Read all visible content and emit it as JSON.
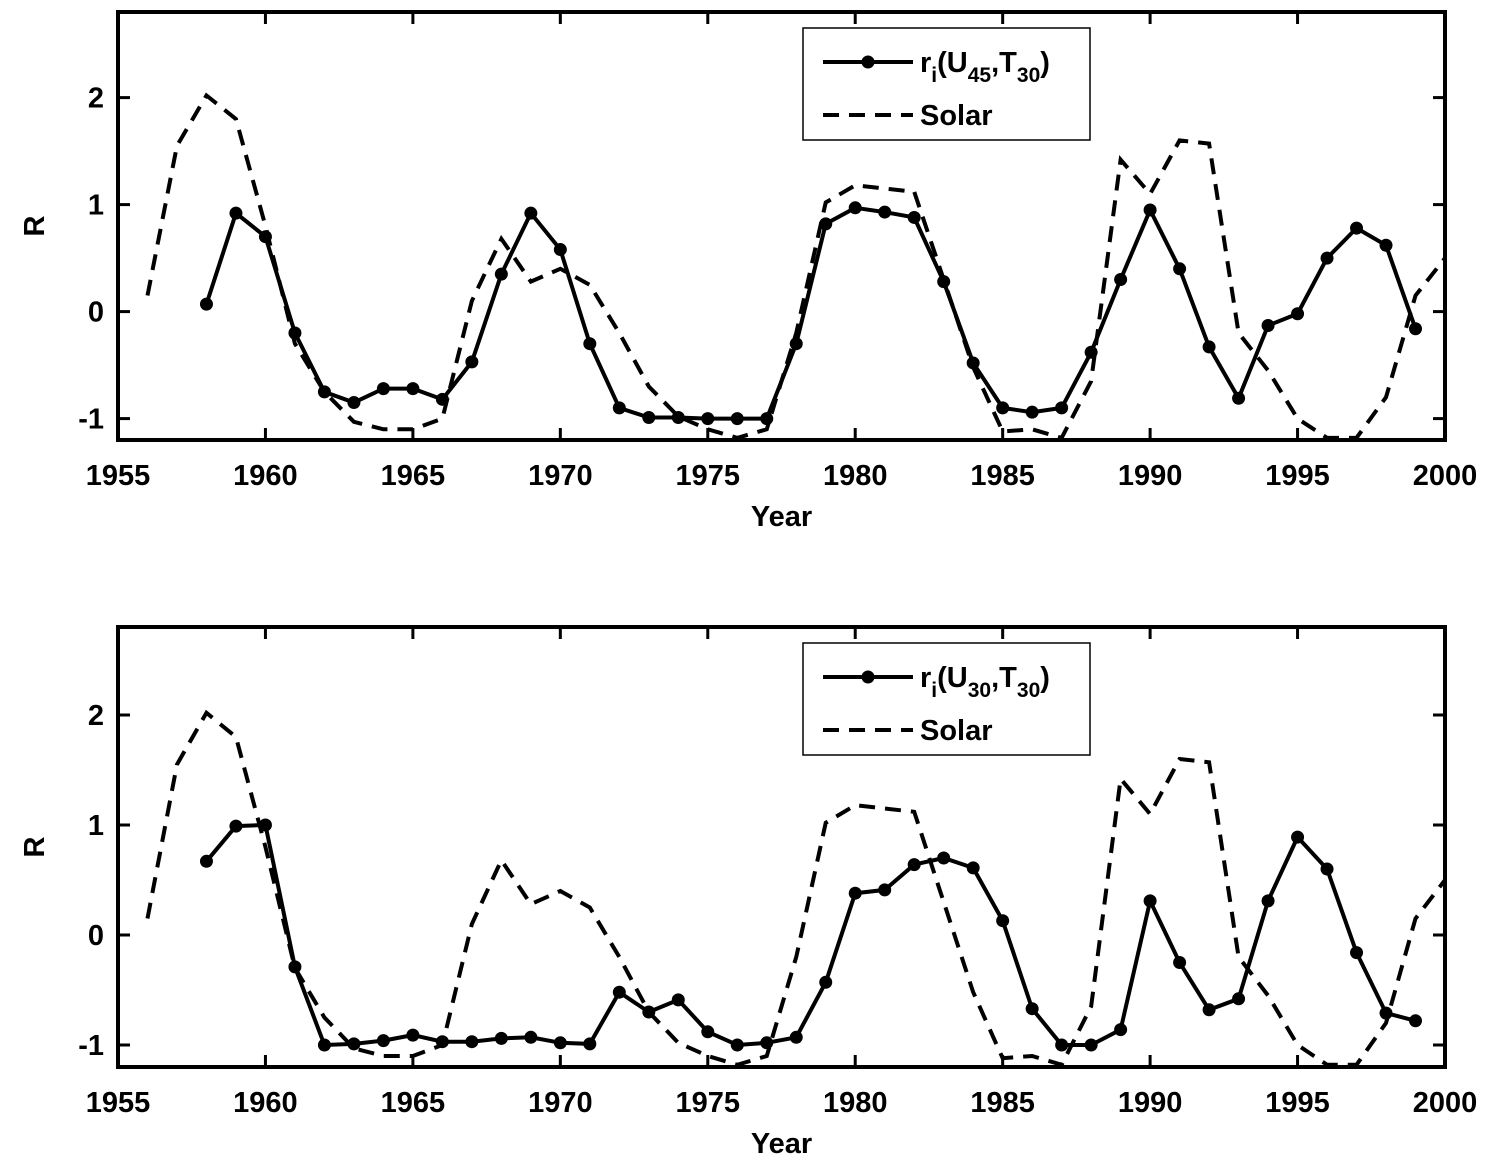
{
  "chart_data": [
    {
      "type": "line",
      "xlabel": "Year",
      "ylabel": "R",
      "xlim": [
        1955,
        2000
      ],
      "xticks": [
        1955,
        1960,
        1965,
        1970,
        1975,
        1980,
        1985,
        1990,
        1995,
        2000
      ],
      "ylim": [
        -1.2,
        2.8
      ],
      "yticks": [
        -1,
        0,
        1,
        2
      ],
      "legend": "upper center",
      "series": [
        {
          "name": "ri(U45,T30)",
          "color": "#000000",
          "linestyle": "solid",
          "marker": true,
          "x": [
            1958,
            1959,
            1960,
            1961,
            1962,
            1963,
            1964,
            1965,
            1966,
            1967,
            1968,
            1969,
            1970,
            1971,
            1972,
            1973,
            1974,
            1975,
            1976,
            1977,
            1978,
            1979,
            1980,
            1981,
            1982,
            1983,
            1984,
            1985,
            1986,
            1987,
            1988,
            1989,
            1990,
            1991,
            1992,
            1993,
            1994,
            1995,
            1996,
            1997,
            1998,
            1999
          ],
          "values": [
            0.07,
            0.92,
            0.7,
            -0.2,
            -0.75,
            -0.85,
            -0.72,
            -0.72,
            -0.82,
            -0.47,
            0.35,
            0.92,
            0.58,
            -0.3,
            -0.9,
            -0.99,
            -0.99,
            -1.0,
            -1.0,
            -1.0,
            -0.3,
            0.82,
            0.97,
            0.93,
            0.88,
            0.28,
            -0.48,
            -0.9,
            -0.94,
            -0.9,
            -0.38,
            0.3,
            0.95,
            0.4,
            -0.33,
            -0.81,
            -0.13,
            -0.02,
            0.5,
            0.78,
            0.62,
            -0.16
          ]
        },
        {
          "name": "Solar",
          "color": "#000000",
          "linestyle": "dashed",
          "marker": false,
          "x": [
            1956,
            1957,
            1958,
            1959,
            1960,
            1961,
            1962,
            1963,
            1964,
            1965,
            1966,
            1967,
            1968,
            1969,
            1970,
            1971,
            1972,
            1973,
            1974,
            1975,
            1976,
            1977,
            1978,
            1979,
            1980,
            1981,
            1982,
            1983,
            1984,
            1985,
            1986,
            1987,
            1988,
            1989,
            1990,
            1991,
            1992,
            1993,
            1994,
            1995,
            1996,
            1997,
            1998,
            1999,
            2000
          ],
          "values": [
            0.15,
            1.55,
            2.02,
            1.8,
            0.8,
            -0.3,
            -0.75,
            -1.03,
            -1.1,
            -1.1,
            -1.0,
            0.1,
            0.68,
            0.28,
            0.4,
            0.25,
            -0.2,
            -0.7,
            -0.98,
            -1.1,
            -1.18,
            -1.1,
            -0.2,
            1.02,
            1.18,
            1.15,
            1.12,
            0.3,
            -0.52,
            -1.12,
            -1.1,
            -1.18,
            -0.65,
            1.42,
            1.1,
            1.6,
            1.57,
            -0.2,
            -0.55,
            -1.0,
            -1.18,
            -1.18,
            -0.8,
            0.15,
            0.5
          ]
        }
      ]
    },
    {
      "type": "line",
      "xlabel": "Year",
      "ylabel": "R",
      "xlim": [
        1955,
        2000
      ],
      "xticks": [
        1955,
        1960,
        1965,
        1970,
        1975,
        1980,
        1985,
        1990,
        1995,
        2000
      ],
      "ylim": [
        -1.2,
        2.8
      ],
      "yticks": [
        -1,
        0,
        1,
        2
      ],
      "legend": "upper center",
      "series": [
        {
          "name": "ri(U30,T30)",
          "color": "#000000",
          "linestyle": "solid",
          "marker": true,
          "x": [
            1958,
            1959,
            1960,
            1961,
            1962,
            1963,
            1964,
            1965,
            1966,
            1967,
            1968,
            1969,
            1970,
            1971,
            1972,
            1973,
            1974,
            1975,
            1976,
            1977,
            1978,
            1979,
            1980,
            1981,
            1982,
            1983,
            1984,
            1985,
            1986,
            1987,
            1988,
            1989,
            1990,
            1991,
            1992,
            1993,
            1994,
            1995,
            1996,
            1997,
            1998,
            1999
          ],
          "values": [
            0.67,
            0.99,
            1.0,
            -0.29,
            -1.0,
            -0.99,
            -0.96,
            -0.91,
            -0.97,
            -0.97,
            -0.94,
            -0.93,
            -0.98,
            -0.99,
            -0.52,
            -0.7,
            -0.59,
            -0.88,
            -1.0,
            -0.98,
            -0.93,
            -0.43,
            0.38,
            0.41,
            0.64,
            0.7,
            0.61,
            0.13,
            -0.67,
            -1.0,
            -1.0,
            -0.86,
            0.31,
            -0.25,
            -0.68,
            -0.58,
            0.31,
            0.89,
            0.6,
            -0.16,
            -0.71,
            -0.78
          ]
        },
        {
          "name": "Solar",
          "color": "#000000",
          "linestyle": "dashed",
          "marker": false,
          "x": [
            1956,
            1957,
            1958,
            1959,
            1960,
            1961,
            1962,
            1963,
            1964,
            1965,
            1966,
            1967,
            1968,
            1969,
            1970,
            1971,
            1972,
            1973,
            1974,
            1975,
            1976,
            1977,
            1978,
            1979,
            1980,
            1981,
            1982,
            1983,
            1984,
            1985,
            1986,
            1987,
            1988,
            1989,
            1990,
            1991,
            1992,
            1993,
            1994,
            1995,
            1996,
            1997,
            1998,
            1999,
            2000
          ],
          "values": [
            0.15,
            1.55,
            2.02,
            1.8,
            0.8,
            -0.3,
            -0.75,
            -1.03,
            -1.1,
            -1.1,
            -1.0,
            0.1,
            0.68,
            0.28,
            0.4,
            0.25,
            -0.2,
            -0.7,
            -0.98,
            -1.1,
            -1.18,
            -1.1,
            -0.2,
            1.02,
            1.18,
            1.15,
            1.12,
            0.3,
            -0.52,
            -1.12,
            -1.1,
            -1.18,
            -0.65,
            1.42,
            1.1,
            1.6,
            1.57,
            -0.2,
            -0.55,
            -1.0,
            -1.18,
            -1.18,
            -0.8,
            0.15,
            0.5
          ]
        }
      ]
    }
  ]
}
